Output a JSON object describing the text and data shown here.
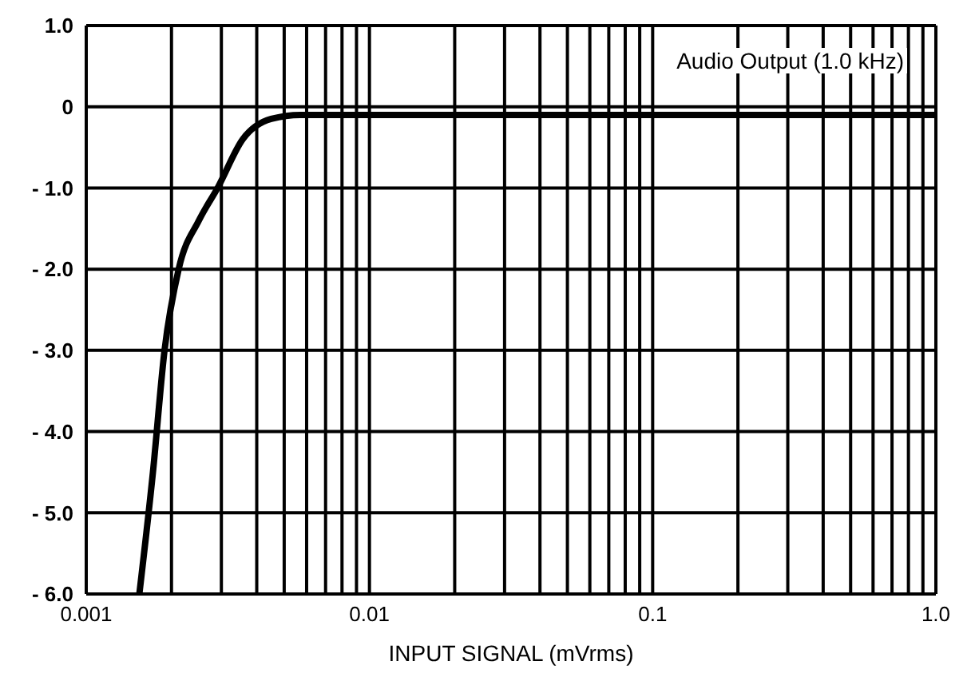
{
  "chart_data": {
    "type": "line",
    "xlabel": "INPUT SIGNAL (mVrms)",
    "annotations": [
      "Audio Output (1.0 kHz)"
    ],
    "log": "x",
    "grid": true,
    "marker": "none",
    "line_style": "solid",
    "xlim": [
      0.001,
      1
    ],
    "ylim": [
      -6,
      1
    ],
    "xticks": [
      0.001,
      {
        "value": 0.002,
        "label": null
      },
      {
        "value": 0.003,
        "label": null
      },
      {
        "value": 0.004,
        "label": null
      },
      {
        "value": 0.005,
        "label": null
      },
      {
        "value": 0.006,
        "label": null
      },
      {
        "value": 0.007,
        "label": null
      },
      {
        "value": 0.008,
        "label": null
      },
      {
        "value": 0.009,
        "label": null
      },
      0.01,
      {
        "value": 0.02,
        "label": null
      },
      {
        "value": 0.03,
        "label": null
      },
      {
        "value": 0.04,
        "label": null
      },
      {
        "value": 0.05,
        "label": null
      },
      {
        "value": 0.06,
        "label": null
      },
      {
        "value": 0.07,
        "label": null
      },
      {
        "value": 0.08,
        "label": null
      },
      {
        "value": 0.09,
        "label": null
      },
      0.1,
      {
        "value": 0.2,
        "label": null
      },
      {
        "value": 0.3,
        "label": null
      },
      {
        "value": 0.4,
        "label": null
      },
      {
        "value": 0.5,
        "label": null
      },
      {
        "value": 0.6,
        "label": null
      },
      {
        "value": 0.7,
        "label": null
      },
      {
        "value": 0.8,
        "label": null
      },
      {
        "value": 0.9,
        "label": null
      },
      {
        "value": 1,
        "label": "1.0"
      }
    ],
    "yticks": [
      {
        "value": 1,
        "label": "1.0"
      },
      0,
      {
        "value": -1,
        "label": "- 1.0"
      },
      {
        "value": -2,
        "label": "- 2.0"
      },
      {
        "value": -3,
        "label": "- 3.0"
      },
      {
        "value": -4,
        "label": "- 4.0"
      },
      {
        "value": -5,
        "label": "- 5.0"
      },
      {
        "value": -6,
        "label": "- 6.0"
      }
    ],
    "series": [
      {
        "color": "#000000",
        "x": [
          0.00154,
          0.00172,
          0.00189,
          0.00212,
          0.0025,
          0.00291,
          0.00357,
          0.0045,
          0.00571,
          0.01,
          0.1,
          1
        ],
        "values": [
          -6,
          -4.5,
          -3,
          -2,
          -1.4,
          -1,
          -0.4,
          -0.15,
          -0.1,
          -0.1,
          -0.1,
          -0.1
        ]
      }
    ]
  }
}
